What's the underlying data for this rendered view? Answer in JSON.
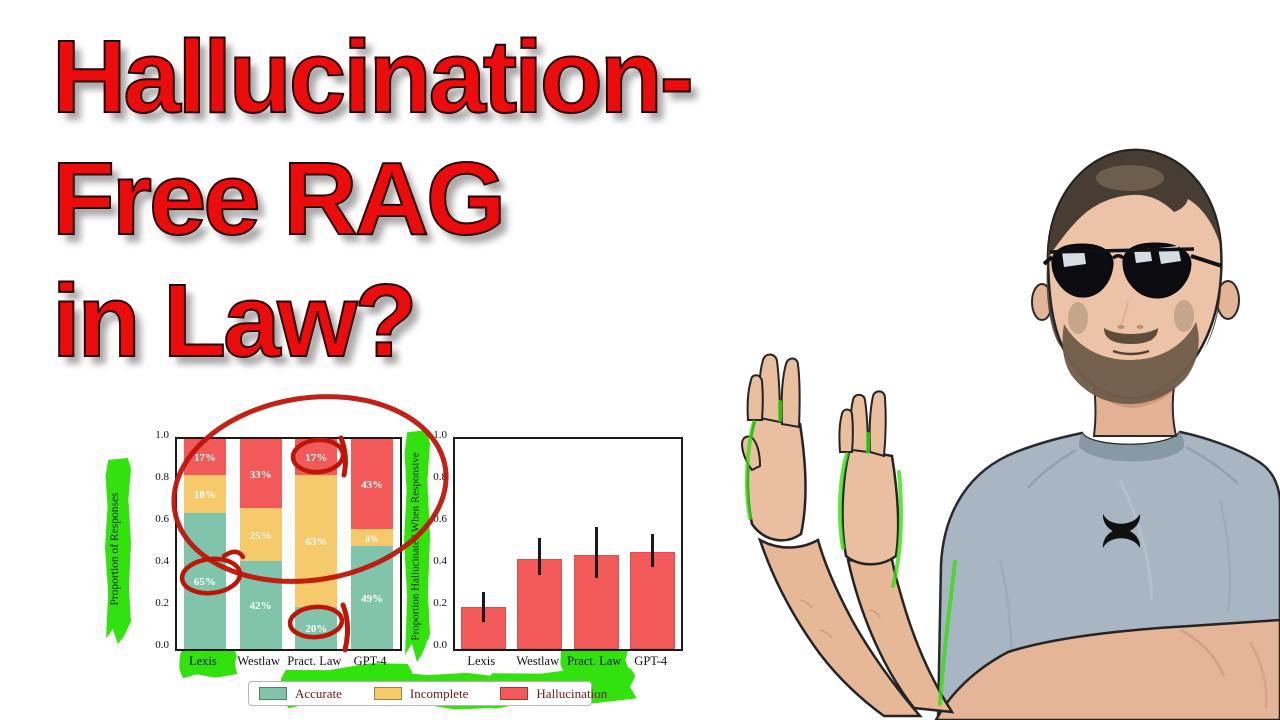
{
  "title": {
    "lines": [
      "Hallucination-",
      "Free RAG",
      "in Law?"
    ],
    "color": "#ec0c0c"
  },
  "chart_data": [
    {
      "type": "bar",
      "subtype": "stacked",
      "categories": [
        "Lexis",
        "Westlaw",
        "Pract. Law",
        "GPT-4"
      ],
      "series": [
        {
          "name": "Accurate",
          "color": "#80c4ab",
          "values": [
            0.65,
            0.42,
            0.2,
            0.49
          ],
          "labels": [
            "65%",
            "42%",
            "20%",
            "49%"
          ]
        },
        {
          "name": "Incomplete",
          "color": "#f6c96b",
          "values": [
            0.18,
            0.25,
            0.63,
            0.08
          ],
          "labels": [
            "18%",
            "25%",
            "63%",
            "8%"
          ]
        },
        {
          "name": "Hallucination",
          "color": "#f25a5a",
          "values": [
            0.17,
            0.33,
            0.17,
            0.43
          ],
          "labels": [
            "17%",
            "33%",
            "17%",
            "43%"
          ]
        }
      ],
      "ylabel": "Proportion of Responses",
      "xlabel": "",
      "ylim": [
        0,
        1
      ],
      "yticks": [
        0,
        0.2,
        0.4,
        0.6,
        0.8,
        1.0
      ],
      "grid": false,
      "legend_position": "bottom"
    },
    {
      "type": "bar",
      "categories": [
        "Lexis",
        "Westlaw",
        "Pract. Law",
        "GPT-4"
      ],
      "values": [
        0.2,
        0.43,
        0.45,
        0.46
      ],
      "error_low": [
        0.13,
        0.35,
        0.34,
        0.39
      ],
      "error_high": [
        0.27,
        0.53,
        0.58,
        0.55
      ],
      "bar_color": "#f25a5a",
      "ylabel": "Proportion Hallucinated When Responsive",
      "xlabel": "",
      "ylim": [
        0,
        1
      ],
      "yticks": [
        0,
        0.2,
        0.4,
        0.6,
        0.8,
        1.0
      ],
      "grid": false
    }
  ],
  "legend": {
    "items": [
      {
        "label": "Accurate",
        "color": "#80c4ab"
      },
      {
        "label": "Incomplete",
        "color": "#f6c96b"
      },
      {
        "label": "Hallucination",
        "color": "#f25a5a"
      }
    ]
  },
  "annotations": {
    "pen_color": "#bf1508",
    "highlighter_color": "#32e20d",
    "circled_values": [
      "65%",
      "17%",
      "20%"
    ],
    "big_ellipse_region": "hallucination segments of all four bars",
    "highlighted_labels": [
      "Proportion of Responses",
      "Proportion Hallucinated When Responsive",
      "Lexis",
      "Pract. Law",
      "Accurate",
      "Incomplete",
      "Hallucination"
    ]
  },
  "person": {
    "description": "man with aviator sunglasses and beard, gray athletic t-shirt, hands raised palms-out",
    "shirt_logo": "under-armour-logo"
  }
}
